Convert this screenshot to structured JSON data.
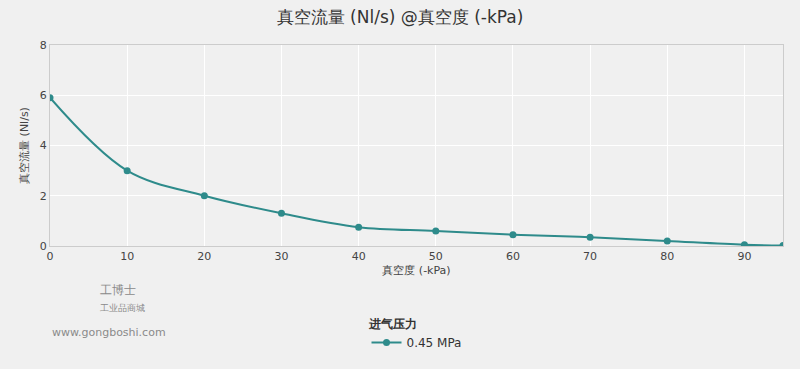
{
  "chart_data": {
    "type": "line",
    "title": "真空流量 (Nl/s) @真空度 (-kPa)",
    "x_label": "真空度 (-kPa)",
    "y_label": "真空流量 (Nl/s)",
    "legend_title": "进气压力",
    "x": [
      0,
      10,
      20,
      30,
      40,
      50,
      60,
      70,
      80,
      90,
      95
    ],
    "series": [
      {
        "name": "0.45 MPa",
        "color": "#2e8b8b",
        "marker": "circle",
        "line_style": "solid",
        "values": [
          5.9,
          3.0,
          2.0,
          1.3,
          0.75,
          0.6,
          0.45,
          0.35,
          0.2,
          0.05,
          0.02
        ]
      }
    ],
    "xlim": [
      0,
      95
    ],
    "xticks": [
      0,
      10,
      20,
      30,
      40,
      50,
      60,
      70,
      80,
      90
    ],
    "ylim": [
      0,
      8
    ],
    "yticks": [
      0,
      2,
      4,
      6,
      8
    ],
    "grid": true,
    "legend": "bottom",
    "annotations": [
      "工博士",
      "工业品商城",
      "www.gongboshi.com"
    ]
  }
}
